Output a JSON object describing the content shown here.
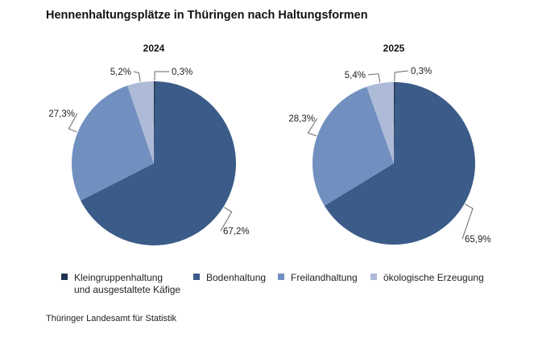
{
  "title": "Hennenhaltungsplätze in Thüringen nach Haltungsformen",
  "source": "Thüringer Landesamt für Statistik",
  "chart_data": [
    {
      "type": "pie",
      "title": "2024",
      "categories": [
        "Kleingruppenhaltung und ausgestaltete Käfige",
        "Bodenhaltung",
        "Freilandhaltung",
        "ökologische Erzeugung"
      ],
      "values": [
        0.3,
        67.2,
        27.3,
        5.2
      ],
      "labels": [
        "0,3%",
        "67,2%",
        "27,3%",
        "5,2%"
      ]
    },
    {
      "type": "pie",
      "title": "2025",
      "categories": [
        "Kleingruppenhaltung und ausgestaltete Käfige",
        "Bodenhaltung",
        "Freilandhaltung",
        "ökologische Erzeugung"
      ],
      "values": [
        0.3,
        65.9,
        28.3,
        5.4
      ],
      "labels": [
        "0,3%",
        "65,9%",
        "28,3%",
        "5,4%"
      ]
    }
  ],
  "legend": [
    {
      "line1": "Kleingruppenhaltung",
      "line2": "und ausgestaltete Käfige",
      "color": "#1f3350"
    },
    {
      "line1": "Bodenhaltung",
      "color": "#3b5b88"
    },
    {
      "line1": "Freilandhaltung",
      "color": "#7190c0"
    },
    {
      "line1": "ökologische Erzeugung",
      "color": "#aebbd8"
    }
  ]
}
